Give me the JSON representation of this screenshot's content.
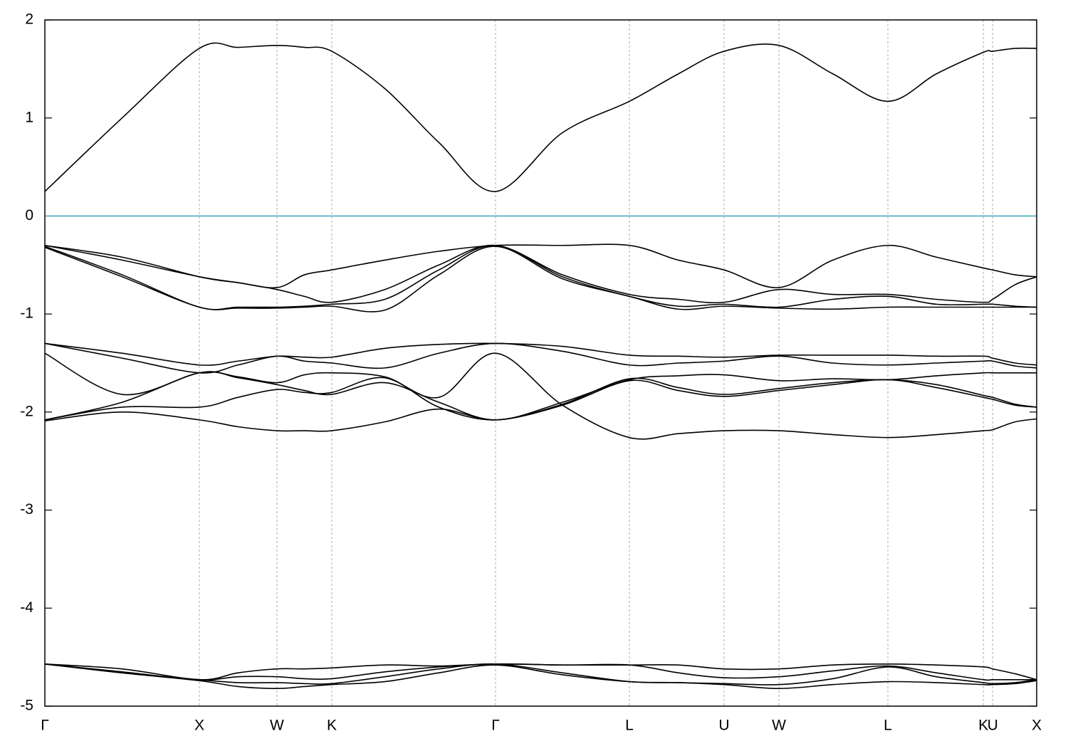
{
  "chart_data": {
    "type": "line",
    "x": [
      0,
      0.5,
      1,
      1.25,
      1.502,
      1.68,
      1.857,
      2.2,
      2.55,
      2.917,
      3.35,
      3.783,
      4.1,
      4.396,
      4.751,
      5.1,
      5.456,
      5.77,
      6.074,
      6.134,
      6.28,
      6.419
    ],
    "xlim": [
      0,
      6.419
    ],
    "xticks": [
      {
        "value": 0,
        "label": "Γ"
      },
      {
        "value": 1,
        "label": "X"
      },
      {
        "value": 1.502,
        "label": "W"
      },
      {
        "value": 1.857,
        "label": "K"
      },
      {
        "value": 2.917,
        "label": "Γ"
      },
      {
        "value": 3.783,
        "label": "L"
      },
      {
        "value": 4.396,
        "label": "U"
      },
      {
        "value": 4.751,
        "label": "W"
      },
      {
        "value": 5.456,
        "label": "L"
      },
      {
        "value": 6.074,
        "label": "K"
      },
      {
        "value": 6.134,
        "label": "U"
      },
      {
        "value": 6.419,
        "label": "X"
      }
    ],
    "ylim": [
      -5,
      2
    ],
    "yticks": [
      -5,
      -4,
      -3,
      -2,
      -1,
      0,
      1,
      2
    ],
    "grid_x": true,
    "hline": {
      "value": 0,
      "color": "#5ab4c8"
    },
    "series": [
      {
        "color": "#000000",
        "values": [
          0.25,
          1.0,
          1.71,
          1.72,
          1.74,
          1.72,
          1.68,
          1.3,
          0.75,
          0.25,
          0.85,
          1.17,
          1.45,
          1.68,
          1.74,
          1.45,
          1.17,
          1.45,
          1.67,
          1.68,
          1.71,
          1.71
        ]
      },
      {
        "color": "#000000",
        "values": [
          -0.3,
          -0.42,
          -0.62,
          -0.68,
          -0.73,
          -0.6,
          -0.55,
          -0.45,
          -0.36,
          -0.3,
          -0.3,
          -0.3,
          -0.45,
          -0.55,
          -0.73,
          -0.45,
          -0.3,
          -0.42,
          -0.53,
          -0.55,
          -0.6,
          -0.62
        ]
      },
      {
        "color": "#000000",
        "values": [
          -0.3,
          -0.45,
          -0.62,
          -0.68,
          -0.75,
          -0.82,
          -0.88,
          -0.75,
          -0.5,
          -0.3,
          -0.6,
          -0.8,
          -0.85,
          -0.88,
          -0.75,
          -0.8,
          -0.8,
          -0.85,
          -0.88,
          -0.85,
          -0.7,
          -0.62
        ]
      },
      {
        "color": "#000000",
        "values": [
          -0.31,
          -0.6,
          -0.93,
          -0.93,
          -0.93,
          -0.92,
          -0.9,
          -0.85,
          -0.55,
          -0.3,
          -0.62,
          -0.82,
          -0.92,
          -0.9,
          -0.93,
          -0.85,
          -0.82,
          -0.9,
          -0.9,
          -0.9,
          -0.92,
          -0.93
        ]
      },
      {
        "color": "#000000",
        "values": [
          -0.32,
          -0.62,
          -0.93,
          -0.94,
          -0.94,
          -0.93,
          -0.92,
          -0.96,
          -0.6,
          -0.31,
          -0.64,
          -0.82,
          -0.95,
          -0.92,
          -0.94,
          -0.95,
          -0.93,
          -0.93,
          -0.93,
          -0.93,
          -0.93,
          -0.93
        ]
      },
      {
        "color": "#000000",
        "values": [
          -1.3,
          -1.4,
          -1.52,
          -1.48,
          -1.43,
          -1.44,
          -1.44,
          -1.35,
          -1.31,
          -1.3,
          -1.33,
          -1.42,
          -1.43,
          -1.44,
          -1.42,
          -1.42,
          -1.42,
          -1.43,
          -1.43,
          -1.45,
          -1.5,
          -1.52
        ]
      },
      {
        "color": "#000000",
        "values": [
          -1.3,
          -1.45,
          -1.6,
          -1.52,
          -1.43,
          -1.48,
          -1.5,
          -1.55,
          -1.4,
          -1.3,
          -1.38,
          -1.52,
          -1.5,
          -1.48,
          -1.43,
          -1.5,
          -1.52,
          -1.5,
          -1.48,
          -1.48,
          -1.53,
          -1.55
        ]
      },
      {
        "color": "#000000",
        "values": [
          -1.4,
          -1.82,
          -1.6,
          -1.64,
          -1.7,
          -1.62,
          -1.6,
          -1.64,
          -1.85,
          -1.4,
          -1.93,
          -2.26,
          -2.22,
          -2.19,
          -2.19,
          -2.23,
          -2.26,
          -2.23,
          -2.19,
          -2.18,
          -2.1,
          -2.07
        ]
      },
      {
        "color": "#000000",
        "values": [
          -2.08,
          -1.9,
          -1.6,
          -1.65,
          -1.72,
          -1.78,
          -1.82,
          -1.7,
          -1.9,
          -2.08,
          -1.9,
          -1.67,
          -1.63,
          -1.62,
          -1.68,
          -1.66,
          -1.67,
          -1.63,
          -1.6,
          -1.6,
          -1.6,
          -1.6
        ]
      },
      {
        "color": "#000000",
        "values": [
          -2.08,
          -1.95,
          -1.95,
          -1.85,
          -1.77,
          -1.8,
          -1.8,
          -1.65,
          -1.95,
          -2.08,
          -1.92,
          -1.66,
          -1.75,
          -1.82,
          -1.76,
          -1.7,
          -1.67,
          -1.72,
          -1.83,
          -1.85,
          -1.92,
          -1.95
        ]
      },
      {
        "color": "#000000",
        "values": [
          -2.09,
          -2.0,
          -2.08,
          -2.15,
          -2.19,
          -2.19,
          -2.19,
          -2.1,
          -1.97,
          -2.08,
          -1.93,
          -1.68,
          -1.78,
          -1.84,
          -1.78,
          -1.72,
          -1.67,
          -1.75,
          -1.85,
          -1.87,
          -1.93,
          -1.95
        ]
      },
      {
        "color": "#000000",
        "values": [
          -4.57,
          -4.62,
          -4.73,
          -4.66,
          -4.62,
          -4.62,
          -4.61,
          -4.58,
          -4.59,
          -4.57,
          -4.58,
          -4.58,
          -4.58,
          -4.62,
          -4.62,
          -4.58,
          -4.57,
          -4.58,
          -4.6,
          -4.62,
          -4.67,
          -4.73
        ]
      },
      {
        "color": "#000000",
        "values": [
          -4.57,
          -4.65,
          -4.73,
          -4.7,
          -4.7,
          -4.72,
          -4.72,
          -4.65,
          -4.6,
          -4.57,
          -4.58,
          -4.58,
          -4.66,
          -4.71,
          -4.7,
          -4.64,
          -4.59,
          -4.66,
          -4.73,
          -4.73,
          -4.73,
          -4.73
        ]
      },
      {
        "color": "#000000",
        "values": [
          -4.57,
          -4.66,
          -4.73,
          -4.76,
          -4.76,
          -4.77,
          -4.77,
          -4.7,
          -4.62,
          -4.57,
          -4.66,
          -4.75,
          -4.76,
          -4.77,
          -4.78,
          -4.72,
          -4.6,
          -4.7,
          -4.76,
          -4.77,
          -4.76,
          -4.73
        ]
      },
      {
        "color": "#000000",
        "values": [
          -4.57,
          -4.66,
          -4.74,
          -4.8,
          -4.82,
          -4.8,
          -4.78,
          -4.75,
          -4.66,
          -4.58,
          -4.68,
          -4.75,
          -4.76,
          -4.78,
          -4.82,
          -4.78,
          -4.75,
          -4.76,
          -4.78,
          -4.78,
          -4.77,
          -4.74
        ]
      }
    ]
  }
}
